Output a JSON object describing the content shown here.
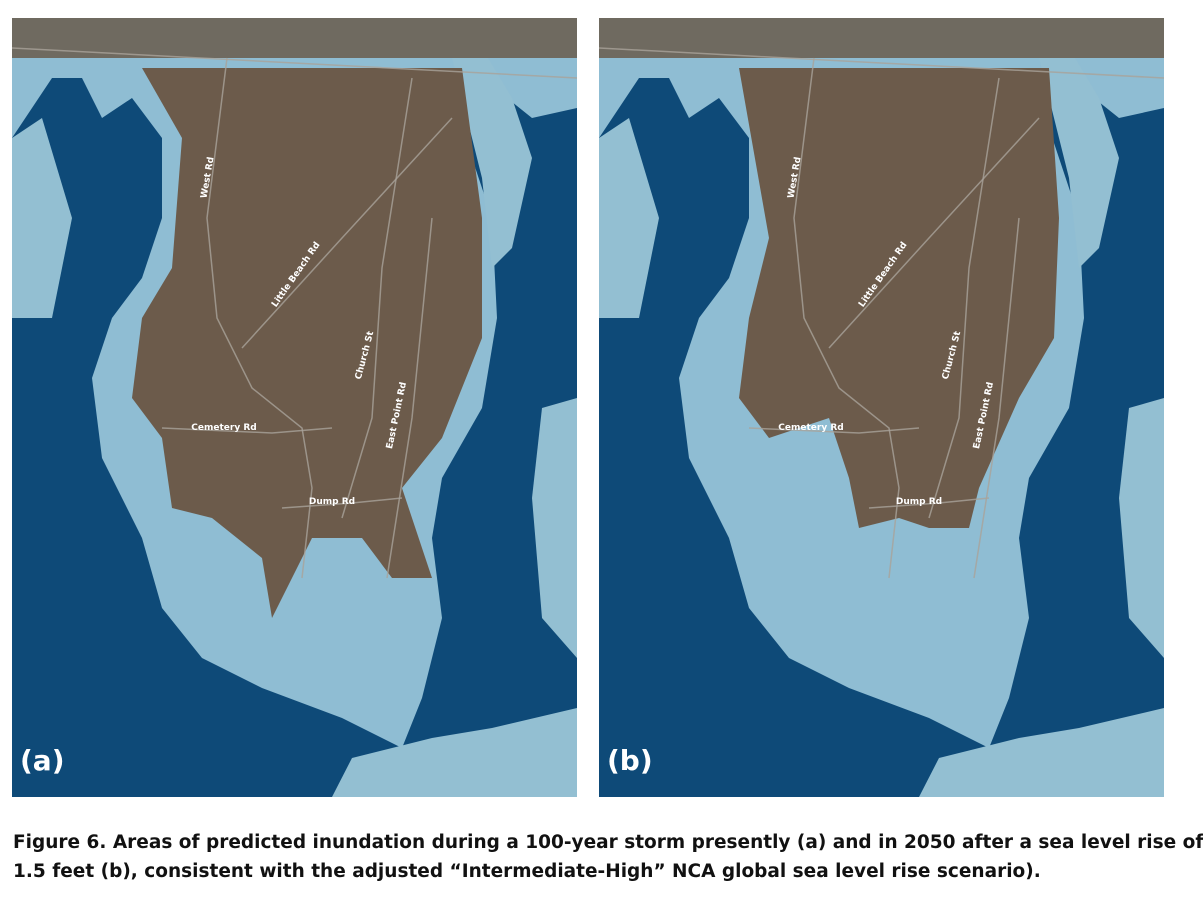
{
  "panels": [
    {
      "label": "(a)",
      "roads": [
        "West Rd",
        "Little Beach Rd",
        "Church St",
        "East Point Rd",
        "Cemetery Rd",
        "Dump Rd"
      ]
    },
    {
      "label": "(b)",
      "roads": [
        "West Rd",
        "Little Beach Rd",
        "Church St",
        "East Point Rd",
        "Cemetery Rd",
        "Dump Rd"
      ]
    }
  ],
  "caption": {
    "lines": [
      "Figure 6.  Areas of predicted inundation during a 100-year storm presently (a) and in 2050 after a sea level rise of",
      "1.5 feet (b),  consistent with the adjusted “Intermediate-High” NCA global sea level rise scenario)."
    ]
  }
}
